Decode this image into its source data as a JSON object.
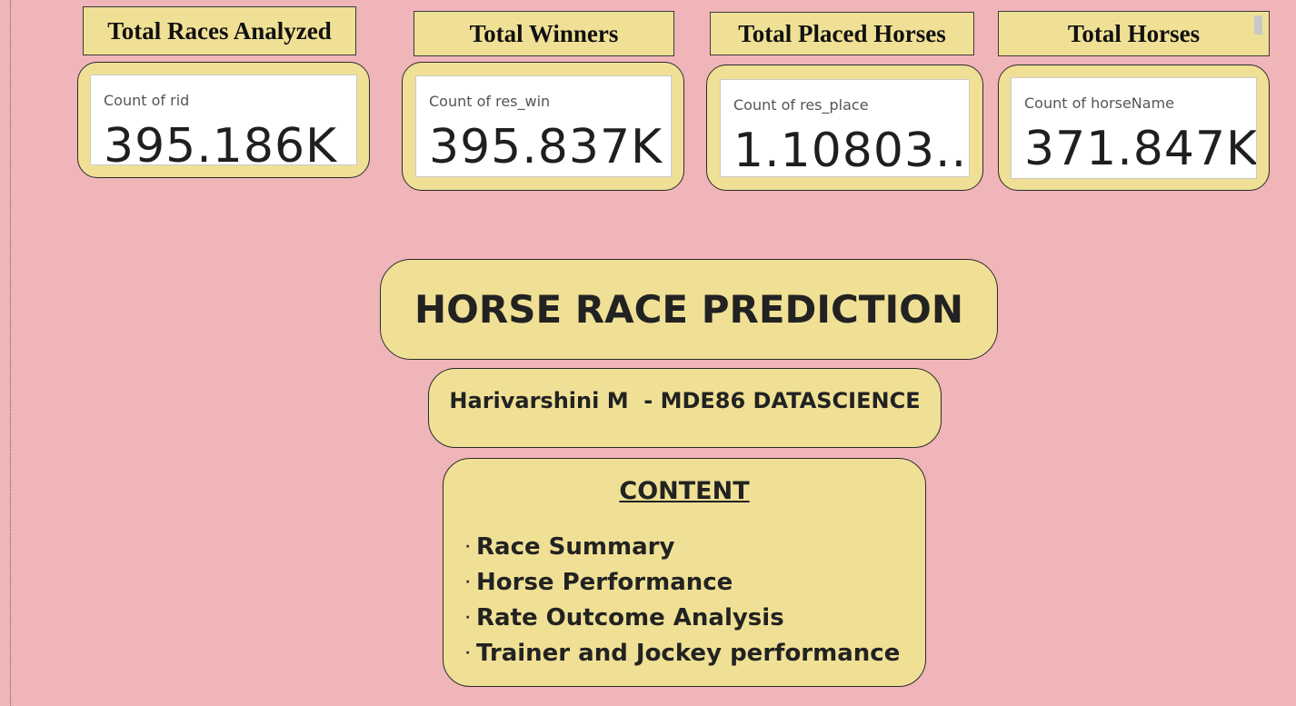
{
  "kpis": [
    {
      "title": "Total Races Analyzed",
      "label": "Count of rid",
      "value": "395.186K"
    },
    {
      "title": "Total Winners",
      "label": "Count of res_win",
      "value": "395.837K"
    },
    {
      "title": "Total Placed Horses",
      "label": "Count of res_place",
      "value": "1.10803..."
    },
    {
      "title": "Total Horses",
      "label": "Count of horseName",
      "value": "371.847K"
    }
  ],
  "header": {
    "title": "HORSE RACE PREDICTION",
    "subtitle": "Harivarshini M  - MDE86 DATASCIENCE"
  },
  "content": {
    "heading": "CONTENT",
    "bullet": "·",
    "items": [
      "Race Summary",
      "Horse Performance",
      "Rate Outcome Analysis",
      "Trainer and Jockey performance"
    ]
  }
}
